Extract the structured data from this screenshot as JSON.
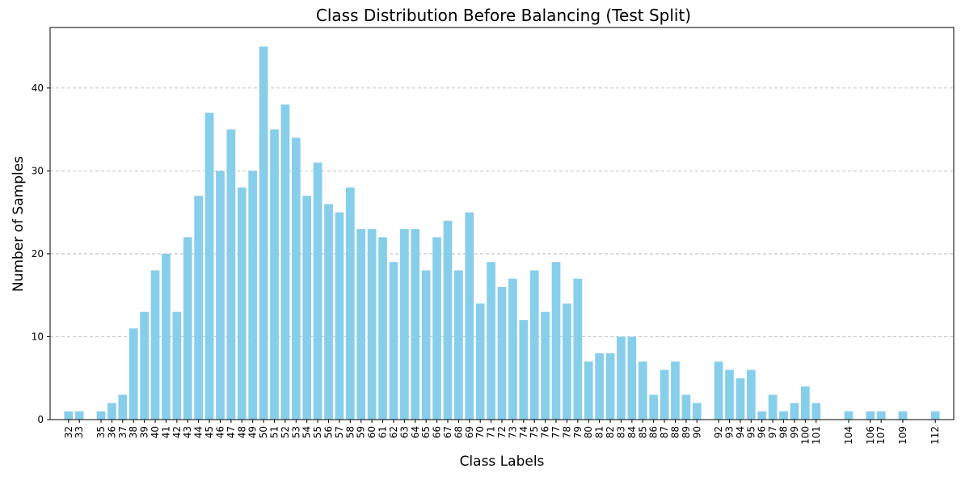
{
  "chart_data": {
    "type": "bar",
    "title": "Class Distribution Before Balancing (Test Split)",
    "xlabel": "Class Labels",
    "ylabel": "Number of Samples",
    "ylim": [
      0,
      47.3
    ],
    "yticks": [
      0,
      10,
      20,
      30,
      40
    ],
    "grid": "y-dashed",
    "bar_color": "#87ceeb",
    "x": [
      32,
      33,
      35,
      36,
      37,
      38,
      39,
      40,
      41,
      42,
      43,
      44,
      45,
      46,
      47,
      48,
      49,
      50,
      51,
      52,
      53,
      54,
      55,
      56,
      57,
      58,
      59,
      60,
      61,
      62,
      63,
      64,
      65,
      66,
      67,
      68,
      69,
      70,
      71,
      72,
      73,
      74,
      75,
      76,
      77,
      78,
      79,
      80,
      81,
      82,
      83,
      84,
      85,
      86,
      87,
      88,
      89,
      90,
      92,
      93,
      94,
      95,
      96,
      97,
      98,
      99,
      100,
      101,
      104,
      106,
      107,
      109,
      112
    ],
    "values": [
      1,
      1,
      1,
      2,
      3,
      11,
      13,
      18,
      20,
      13,
      22,
      27,
      37,
      30,
      35,
      28,
      30,
      45,
      35,
      38,
      34,
      27,
      31,
      26,
      25,
      28,
      23,
      23,
      22,
      19,
      23,
      23,
      18,
      22,
      24,
      18,
      25,
      14,
      19,
      16,
      17,
      12,
      18,
      13,
      19,
      14,
      17,
      7,
      8,
      8,
      10,
      10,
      7,
      3,
      6,
      7,
      3,
      2,
      7,
      6,
      5,
      6,
      1,
      3,
      1,
      2,
      4,
      2,
      1,
      1,
      1,
      1,
      1
    ]
  }
}
